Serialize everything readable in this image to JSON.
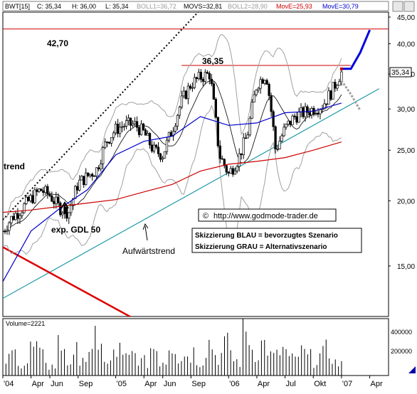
{
  "header": {
    "symbol": "BWT",
    "interval": "[15]",
    "c": "C: 35,34",
    "h": "H: 36,00",
    "l": "L: 35,34",
    "boll1": "BOLL1=36,72",
    "movs": "MOVS=32,81",
    "boll2": "BOLL2=28,90",
    "move_red": "MovE=25,93",
    "move_blue": "MovE=30,79"
  },
  "colors": {
    "price": "#000000",
    "move_red": "#cc0000",
    "move_blue": "#0000cc",
    "bollinger": "#a0a0a0",
    "movs": "#000000",
    "trend_teal": "#1f9aa8",
    "resistance_red": "#cc0000",
    "scenario_blue": "#0000dd",
    "scenario_gray": "#a0a0a0",
    "last_price_box": "#000000"
  },
  "annotations": {
    "level_4270": "42,70",
    "level_3635": "36,35",
    "trend": "trend",
    "gdl": "exp. GDL 50",
    "aufwaertstrend": "Aufwärtstrend",
    "copyright_symbol": "©",
    "url": "http://www.godmode-trader.de",
    "legend_blue": "Skizzierung BLAU = bevorzugtes Szenario",
    "legend_gray": "Skizzierung GRAU = Alternativszenario"
  },
  "volume_panel": {
    "label": "Volume=2221",
    "ticks": [
      "400000",
      "200000"
    ]
  },
  "last_price_label": "35,34",
  "chart_data": {
    "type": "line",
    "title": "",
    "xlabel": "",
    "ylabel": "",
    "y_scale": "log",
    "ylim": [
      12,
      46
    ],
    "y_ticks": [
      "45,00",
      "40,00",
      "35,00",
      "30,00",
      "25,00",
      "20,00",
      "15,00"
    ],
    "y_tick_values": [
      45,
      40,
      35,
      30,
      25,
      20,
      15
    ],
    "x_range": [
      "2004-01",
      "2007-05"
    ],
    "x_ticks": [
      "'04",
      "Apr",
      "Jun",
      "Sep",
      "'05",
      "Apr",
      "Jun",
      "Sep",
      "'06",
      "Apr",
      "Jul",
      "Okt",
      "'07",
      "Apr"
    ],
    "x_tick_dates": [
      "2004-01",
      "2004-04",
      "2004-06",
      "2004-09",
      "2005-01",
      "2005-04",
      "2005-06",
      "2005-09",
      "2006-01",
      "2006-04",
      "2006-07",
      "2006-10",
      "2007-01",
      "2007-04"
    ],
    "horizontal_lines": [
      42.7,
      36.35
    ],
    "series": [
      {
        "x": [
          "2004-01",
          "2004-02",
          "2004-03",
          "2004-04",
          "2004-05",
          "2004-06",
          "2004-07",
          "2004-08",
          "2004-09",
          "2004-10",
          "2004-11",
          "2004-12",
          "2005-01",
          "2005-02",
          "2005-03",
          "2005-04",
          "2005-05",
          "2005-06",
          "2005-07",
          "2005-08",
          "2005-09",
          "2005-10",
          "2005-11",
          "2005-12",
          "2006-01",
          "2006-02",
          "2006-03",
          "2006-04",
          "2006-05",
          "2006-06",
          "2006-07",
          "2006-08",
          "2006-09",
          "2006-10",
          "2006-11",
          "2006-12",
          "2007-01"
        ],
        "values": [
          17.5,
          18.6,
          19.3,
          20.2,
          21.0,
          20.5,
          19.4,
          19.0,
          21.6,
          22.3,
          23.0,
          26.0,
          27.4,
          28.0,
          28.0,
          27.0,
          25.0,
          24.5,
          27.4,
          31.0,
          33.5,
          34.5,
          35.0,
          24.5,
          22.5,
          24.0,
          26.8,
          33.5,
          35.0,
          25.0,
          27.5,
          29.0,
          29.5,
          30.0,
          30.5,
          32.5,
          35.34
        ]
      },
      {
        "name": "MovE=30,79",
        "x": [
          "2004-01",
          "2004-04",
          "2004-07",
          "2004-10",
          "2005-01",
          "2005-04",
          "2005-07",
          "2005-10",
          "2006-01",
          "2006-04",
          "2006-07",
          "2006-10",
          "2007-01"
        ],
        "values": [
          14.0,
          17.5,
          19.3,
          21.0,
          24.5,
          26.0,
          26.6,
          29.0,
          27.9,
          28.2,
          29.5,
          29.7,
          30.79
        ]
      },
      {
        "name": "MovE=25,93",
        "x": [
          "2004-01",
          "2004-04",
          "2004-07",
          "2004-10",
          "2005-01",
          "2005-04",
          "2005-07",
          "2005-10",
          "2006-01",
          "2006-04",
          "2006-07",
          "2006-10",
          "2007-01"
        ],
        "values": [
          19.0,
          19.2,
          19.5,
          19.8,
          20.1,
          20.8,
          21.5,
          22.8,
          23.5,
          23.8,
          24.2,
          25.0,
          25.93
        ]
      }
    ],
    "scenario_blue": {
      "x": [
        "2007-01",
        "2007-02",
        "2007-03",
        "2007-04"
      ],
      "values": [
        35.8,
        35.8,
        38.5,
        42.5
      ]
    },
    "scenario_gray": {
      "x": [
        "2007-01",
        "2007-02",
        "2007-03"
      ],
      "values": [
        34.0,
        32.0,
        29.8
      ]
    },
    "volume": {
      "type": "bar",
      "ylim": [
        0,
        450000
      ],
      "values": [
        150000,
        210000,
        120000,
        260000,
        180000,
        90000,
        300000,
        140000,
        220000,
        170000,
        380000,
        110000,
        240000,
        160000,
        200000,
        130000,
        280000,
        150000,
        350000,
        190000,
        230000,
        160000,
        320000,
        200000,
        280000,
        140000,
        420000,
        260000,
        300000,
        180000,
        240000,
        150000,
        210000,
        170000,
        190000,
        230000,
        120000
      ]
    }
  }
}
